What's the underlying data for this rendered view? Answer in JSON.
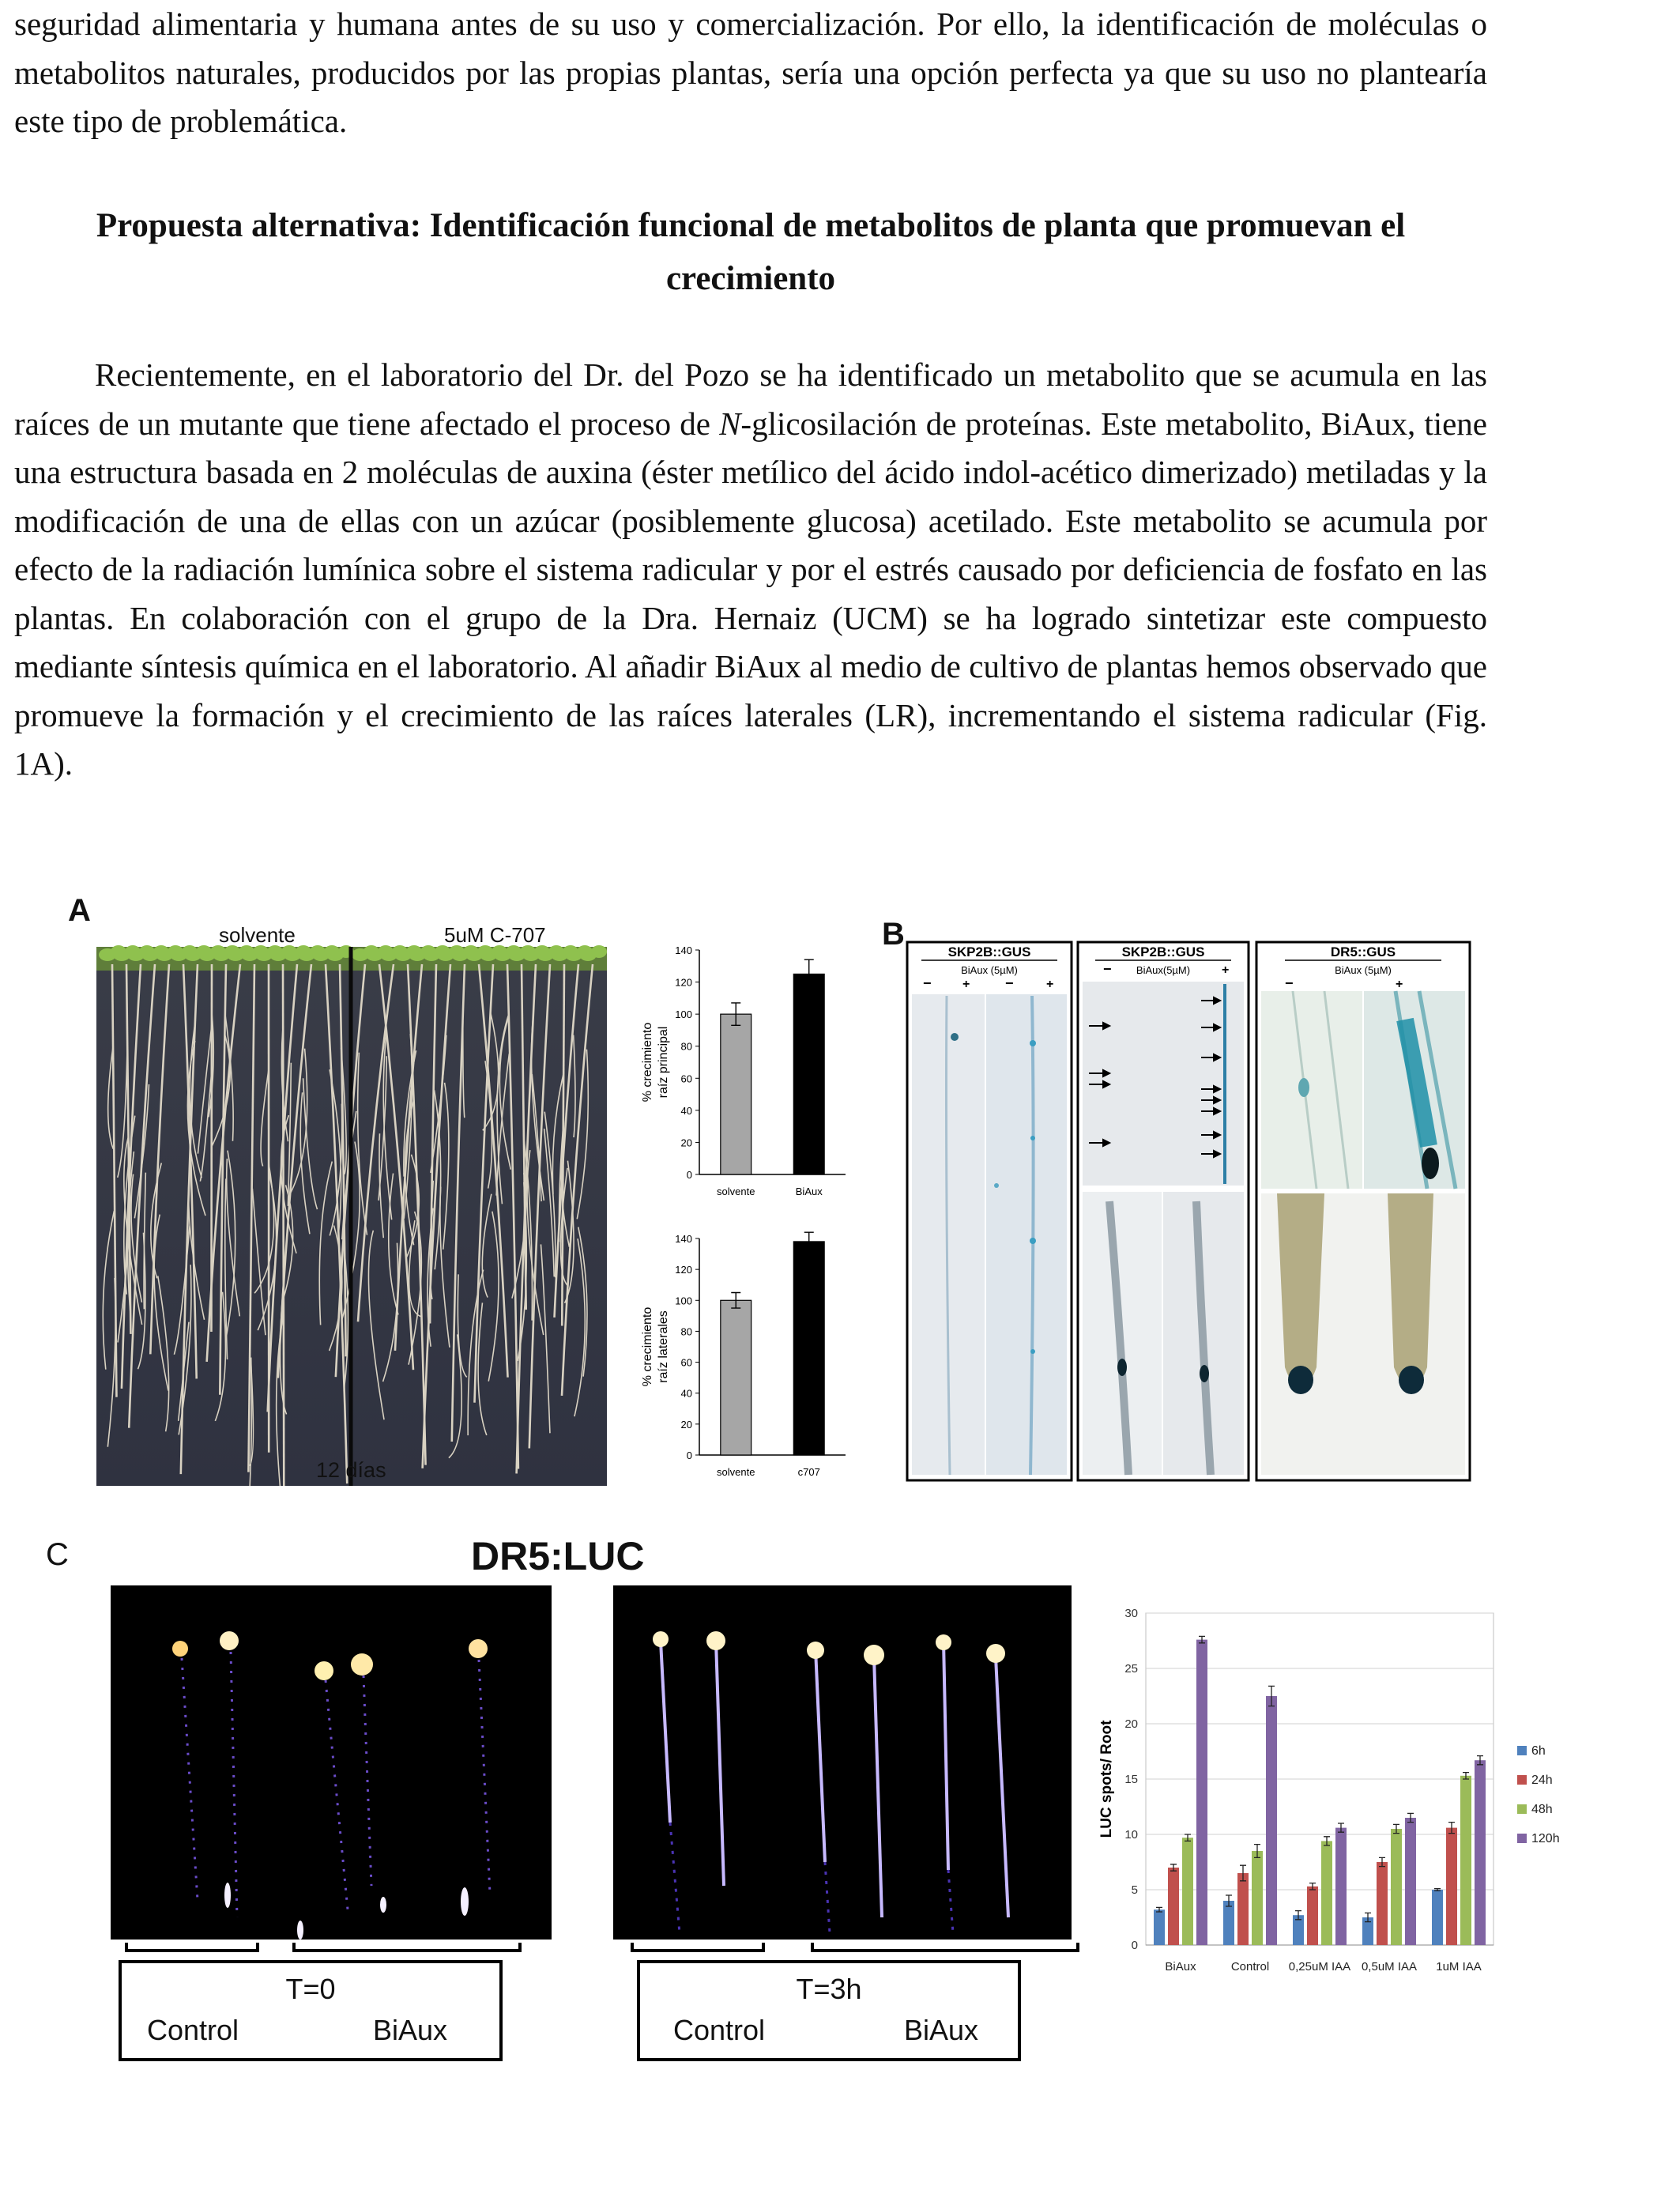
{
  "text": {
    "intro_para": "seguridad alimentaria y humana antes de su uso y comercialización. Por ello, la identificación de moléculas o metabolitos naturales, producidos por las propias plantas, sería una opción perfecta ya que su uso no plantearía este tipo de problemática.",
    "heading": "Propuesta alternativa: Identificación funcional de metabolitos de planta que promuevan el crecimiento",
    "body_part1": "Recientemente, en el laboratorio del Dr. del Pozo se ha identificado un metabolito que se acumula en las raíces de un mutante que tiene afectado el proceso de ",
    "body_italic": "N",
    "body_part2": "-glicosilación de proteínas. Este metabolito, BiAux, tiene una estructura basada en 2 moléculas de auxina (éster metílico del ácido indol-acético dimerizado) metiladas y la modificación de una de ellas con un azúcar (posiblemente glucosa) acetilado. Este metabolito se acumula por efecto de la radiación lumínica sobre el sistema radicular y por el estrés causado por deficiencia de fosfato en las plantas. En colaboración con el grupo de la Dra. Hernaiz (UCM) se ha logrado sintetizar este compuesto mediante síntesis química en el laboratorio. Al añadir BiAux al medio de cultivo de plantas hemos observado que promueve la formación y el crecimiento de las raíces laterales (LR), incrementando el sistema radicular (Fig. 1A)."
  },
  "figure": {
    "panel_a": {
      "letter": "A",
      "photo_labels": {
        "left": "solvente",
        "right": "5uM C-707",
        "bottom": "12 días"
      }
    },
    "panel_b": {
      "letter": "B",
      "boxes": [
        {
          "title": "SKP2B::GUS",
          "subtitle": "BiAux (5µM)",
          "minus": "−",
          "plus": "+"
        },
        {
          "title": "SKP2B::GUS",
          "subtitle": "BiAux(5µM)",
          "minus": "−",
          "plus": "+"
        },
        {
          "title": "DR5::GUS",
          "subtitle": "BiAux  (5µM)",
          "minus": "−",
          "plus": "+"
        }
      ]
    },
    "panel_c": {
      "letter": "C",
      "title": "DR5:LUC",
      "box_left": {
        "time": "T=0",
        "control": "Control",
        "treat": "BiAux"
      },
      "box_right": {
        "time": "T=3h",
        "control": "Control",
        "treat": "BiAux"
      }
    }
  },
  "chart_data": [
    {
      "type": "bar",
      "panel": "A-top",
      "categories": [
        "solvente",
        "BiAux"
      ],
      "values": [
        100,
        125
      ],
      "errors": [
        7,
        9
      ],
      "colors": [
        "#a6a6a6",
        "#000000"
      ],
      "ylabel": "% crecimiento raíz principal",
      "ylim": [
        0,
        140
      ],
      "yticks": [
        0,
        20,
        40,
        60,
        80,
        100,
        120,
        140
      ]
    },
    {
      "type": "bar",
      "panel": "A-bottom",
      "categories": [
        "solvente",
        "c707"
      ],
      "values": [
        100,
        138
      ],
      "errors": [
        5,
        6
      ],
      "colors": [
        "#a6a6a6",
        "#000000"
      ],
      "ylabel": "% crecimiento raíz laterales",
      "ylim": [
        0,
        140
      ],
      "yticks": [
        0,
        20,
        40,
        60,
        80,
        100,
        120,
        140
      ]
    },
    {
      "type": "bar",
      "panel": "C",
      "categories": [
        "BiAux",
        "Control",
        "0,25uM IAA",
        "0,5uM IAA",
        "1uM IAA"
      ],
      "series": [
        {
          "name": "6h",
          "color": "#4f81bd",
          "values": [
            3.2,
            4.0,
            2.7,
            2.5,
            5.0
          ],
          "errors": [
            0.2,
            0.5,
            0.4,
            0.4,
            0.1
          ]
        },
        {
          "name": "24h",
          "color": "#c0504d",
          "values": [
            7.0,
            6.5,
            5.3,
            7.5,
            10.6
          ],
          "errors": [
            0.3,
            0.7,
            0.3,
            0.4,
            0.5
          ]
        },
        {
          "name": "48h",
          "color": "#9bbb59",
          "values": [
            9.7,
            8.5,
            9.4,
            10.5,
            15.3
          ],
          "errors": [
            0.3,
            0.6,
            0.4,
            0.4,
            0.3
          ]
        },
        {
          "name": "120h",
          "color": "#8064a2",
          "values": [
            27.6,
            22.5,
            10.6,
            11.5,
            16.7
          ],
          "errors": [
            0.3,
            0.9,
            0.4,
            0.4,
            0.4
          ]
        }
      ],
      "ylabel": "LUC  spots/ Root",
      "ylim": [
        0,
        30
      ],
      "yticks": [
        0,
        5,
        10,
        15,
        20,
        25,
        30
      ],
      "legend": "right"
    }
  ]
}
